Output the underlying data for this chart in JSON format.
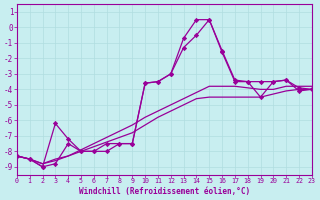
{
  "xlabel": "Windchill (Refroidissement éolien,°C)",
  "bg_color": "#c8eef0",
  "line_color": "#990099",
  "grid_color": "#b0dde0",
  "xlim": [
    0,
    23
  ],
  "ylim": [
    -9.5,
    1.5
  ],
  "yticks": [
    1,
    0,
    -1,
    -2,
    -3,
    -4,
    -5,
    -6,
    -7,
    -8,
    -9
  ],
  "xticks": [
    0,
    1,
    2,
    3,
    4,
    5,
    6,
    7,
    8,
    9,
    10,
    11,
    12,
    13,
    14,
    15,
    16,
    17,
    18,
    19,
    20,
    21,
    22,
    23
  ],
  "x": [
    0,
    1,
    2,
    3,
    4,
    5,
    6,
    7,
    8,
    9,
    10,
    11,
    12,
    13,
    14,
    15,
    16,
    17,
    18,
    19,
    20,
    21,
    22,
    23
  ],
  "series_smooth1": [
    -8.3,
    -8.5,
    -8.8,
    -8.5,
    -8.3,
    -8.0,
    -7.7,
    -7.4,
    -7.1,
    -6.8,
    -6.3,
    -5.8,
    -5.4,
    -5.0,
    -4.6,
    -4.5,
    -4.5,
    -4.5,
    -4.5,
    -4.5,
    -4.3,
    -4.1,
    -4.0,
    -4.0
  ],
  "series_smooth2": [
    -8.3,
    -8.5,
    -8.8,
    -8.6,
    -8.3,
    -7.9,
    -7.5,
    -7.1,
    -6.7,
    -6.3,
    -5.8,
    -5.4,
    -5.0,
    -4.6,
    -4.2,
    -3.8,
    -3.8,
    -3.8,
    -3.9,
    -4.0,
    -4.0,
    -3.8,
    -3.8,
    -3.8
  ],
  "series_jagged1": [
    -8.3,
    -8.5,
    -9.0,
    -6.2,
    -7.2,
    -8.0,
    -8.0,
    -8.0,
    -7.5,
    -7.5,
    -3.6,
    -3.5,
    -3.0,
    -1.3,
    -0.5,
    0.5,
    -1.6,
    -3.5,
    -3.5,
    -3.5,
    -3.5,
    -3.4,
    -4.1,
    -4.0
  ],
  "series_jagged2": [
    -8.3,
    -8.5,
    -9.0,
    -8.8,
    -7.5,
    -8.0,
    -8.0,
    -7.5,
    -7.5,
    -7.5,
    -3.6,
    -3.5,
    -3.0,
    -0.7,
    0.5,
    0.5,
    -1.5,
    -3.4,
    -3.5,
    -4.5,
    -3.5,
    -3.4,
    -3.9,
    -4.0
  ]
}
